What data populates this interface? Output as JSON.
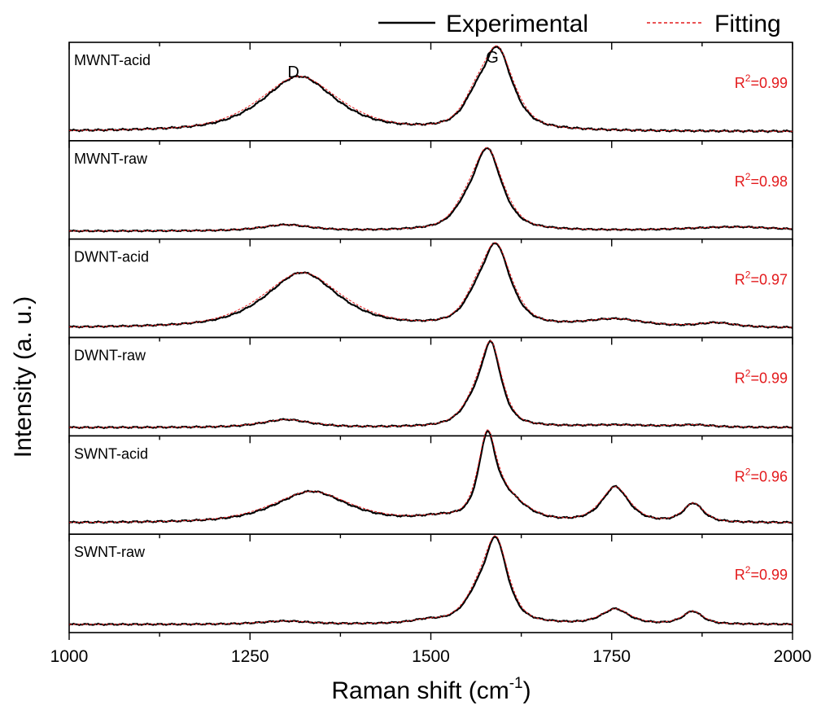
{
  "chart_data": {
    "type": "line",
    "title": "",
    "xlabel": "Raman shift (cm⁻¹)",
    "xlabel_main": "Raman shift (cm",
    "xlabel_sup": "-1",
    "xlabel_close": ")",
    "ylabel": "Intensity (a. u.)",
    "xlim": [
      1000,
      2000
    ],
    "x_ticks": [
      1000,
      1250,
      1500,
      1750,
      2000
    ],
    "ylim": [
      0,
      1
    ],
    "grid": false,
    "legend": {
      "position": "top-right",
      "entries": [
        {
          "label": "Experimental",
          "color": "#000000",
          "style": "solid"
        },
        {
          "label": "Fitting",
          "color": "#e31a1c",
          "style": "dashed"
        }
      ]
    },
    "peak_labels": [
      {
        "text": "D",
        "x": 1310
      },
      {
        "text": "G",
        "x": 1585
      }
    ],
    "r2_prefix": "R",
    "r2_sup": "2",
    "panels": [
      {
        "name": "MWNT-acid",
        "r2": "=0.99",
        "baseline": 0.03,
        "peaks": [
          {
            "center": 1318,
            "height": 0.4,
            "width": 60
          },
          {
            "center": 1592,
            "height": 0.58,
            "width": 25
          },
          {
            "center": 1560,
            "height": 0.12,
            "width": 20
          }
        ]
      },
      {
        "name": "MWNT-raw",
        "r2": "=0.98",
        "baseline": 0.03,
        "peaks": [
          {
            "center": 1300,
            "height": 0.06,
            "width": 40
          },
          {
            "center": 1578,
            "height": 0.8,
            "width": 24
          },
          {
            "center": 1545,
            "height": 0.1,
            "width": 20
          },
          {
            "center": 1920,
            "height": 0.04,
            "width": 80
          }
        ]
      },
      {
        "name": "DWNT-acid",
        "r2": "=0.97",
        "baseline": 0.04,
        "peaks": [
          {
            "center": 1322,
            "height": 0.5,
            "width": 60
          },
          {
            "center": 1590,
            "height": 0.72,
            "width": 24
          },
          {
            "center": 1560,
            "height": 0.12,
            "width": 20
          },
          {
            "center": 1755,
            "height": 0.07,
            "width": 50
          },
          {
            "center": 1895,
            "height": 0.04,
            "width": 30
          }
        ]
      },
      {
        "name": "DWNT-raw",
        "r2": "=0.99",
        "baseline": 0.03,
        "peaks": [
          {
            "center": 1300,
            "height": 0.07,
            "width": 40
          },
          {
            "center": 1583,
            "height": 0.72,
            "width": 17
          },
          {
            "center": 1557,
            "height": 0.14,
            "width": 20
          },
          {
            "center": 1760,
            "height": 0.02,
            "width": 60
          },
          {
            "center": 1865,
            "height": 0.02,
            "width": 30
          }
        ]
      },
      {
        "name": "SWNT-acid",
        "r2": "=0.96",
        "baseline": 0.05,
        "peaks": [
          {
            "center": 1335,
            "height": 0.25,
            "width": 60
          },
          {
            "center": 1578,
            "height": 0.62,
            "width": 14
          },
          {
            "center": 1605,
            "height": 0.18,
            "width": 30
          },
          {
            "center": 1510,
            "height": 0.03,
            "width": 40
          },
          {
            "center": 1755,
            "height": 0.28,
            "width": 22
          },
          {
            "center": 1863,
            "height": 0.15,
            "width": 16
          }
        ]
      },
      {
        "name": "SWNT-raw",
        "r2": "=0.99",
        "baseline": 0.03,
        "peaks": [
          {
            "center": 1298,
            "height": 0.03,
            "width": 40
          },
          {
            "center": 1590,
            "height": 0.76,
            "width": 19
          },
          {
            "center": 1562,
            "height": 0.18,
            "width": 22
          },
          {
            "center": 1495,
            "height": 0.03,
            "width": 25
          },
          {
            "center": 1755,
            "height": 0.14,
            "width": 22
          },
          {
            "center": 1862,
            "height": 0.12,
            "width": 16
          }
        ]
      }
    ]
  }
}
